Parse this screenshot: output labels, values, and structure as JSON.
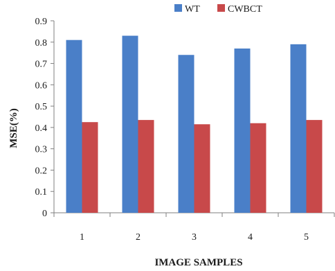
{
  "chart_data": {
    "type": "bar",
    "title": "",
    "xlabel": "IMAGE SAMPLES",
    "ylabel": "MSE(%)",
    "categories": [
      "1",
      "2",
      "3",
      "4",
      "5"
    ],
    "series": [
      {
        "name": "WT",
        "color": "#4a7fc8",
        "values": [
          0.81,
          0.83,
          0.74,
          0.77,
          0.79
        ]
      },
      {
        "name": "CWBCT",
        "color": "#c8494a",
        "values": [
          0.425,
          0.435,
          0.415,
          0.42,
          0.435
        ]
      }
    ],
    "ylim": [
      0,
      0.9
    ],
    "yticks": [
      "0",
      "0.1",
      "0.2",
      "0.3",
      "0.4",
      "0.5",
      "0.6",
      "0.7",
      "0.8",
      "0.9"
    ],
    "grid": false,
    "legend_position": "top"
  }
}
